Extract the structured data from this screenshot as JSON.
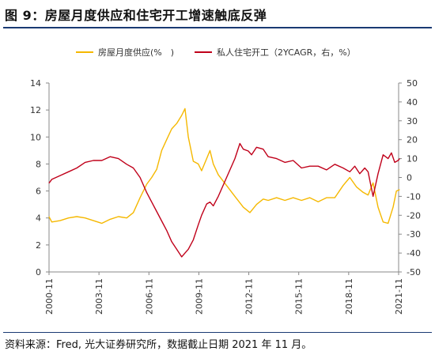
{
  "title": "图 9：房屋月度供应和住宅开工增速触底反弹",
  "source": "资料来源：Fred, 光大证券研究所，数据截止日期 2021 年 11 月。",
  "colors": {
    "supply": "#f5b800",
    "starts": "#c0001a",
    "rule": "#1a3a73",
    "axis": "#888888"
  },
  "chart_data": {
    "type": "line",
    "x_start": "2000-11",
    "x_end": "2021-11",
    "x_tick_labels": [
      "2000-11",
      "2003-11",
      "2006-11",
      "2009-11",
      "2012-11",
      "2015-11",
      "2018-11",
      "2021-11"
    ],
    "left_axis": {
      "ylim": [
        0,
        14
      ],
      "ticks": [
        "0",
        "2",
        "4",
        "6",
        "8",
        "10",
        "12",
        "14"
      ]
    },
    "right_axis": {
      "ylim": [
        -50,
        50
      ],
      "ticks": [
        "-50",
        "-40",
        "-30",
        "-20",
        "-10",
        "0",
        "10",
        "20",
        "30",
        "40",
        "50"
      ]
    },
    "legend_position": "top",
    "series": [
      {
        "name": "房屋月度供应(%　)",
        "axis": "left",
        "points": [
          [
            2000.83,
            4.1
          ],
          [
            2001.0,
            3.7
          ],
          [
            2001.5,
            3.8
          ],
          [
            2002.0,
            4.0
          ],
          [
            2002.5,
            4.1
          ],
          [
            2003.0,
            4.0
          ],
          [
            2003.5,
            3.8
          ],
          [
            2004.0,
            3.6
          ],
          [
            2004.5,
            3.9
          ],
          [
            2005.0,
            4.1
          ],
          [
            2005.5,
            4.0
          ],
          [
            2005.9,
            4.4
          ],
          [
            2006.3,
            5.5
          ],
          [
            2006.7,
            6.5
          ],
          [
            2007.0,
            7.0
          ],
          [
            2007.3,
            7.6
          ],
          [
            2007.6,
            9.0
          ],
          [
            2007.9,
            9.8
          ],
          [
            2008.2,
            10.6
          ],
          [
            2008.5,
            11.0
          ],
          [
            2008.8,
            11.6
          ],
          [
            2009.0,
            12.1
          ],
          [
            2009.2,
            10.0
          ],
          [
            2009.5,
            8.2
          ],
          [
            2009.8,
            8.0
          ],
          [
            2010.0,
            7.5
          ],
          [
            2010.3,
            8.4
          ],
          [
            2010.5,
            9.0
          ],
          [
            2010.7,
            8.0
          ],
          [
            2011.0,
            7.2
          ],
          [
            2011.5,
            6.4
          ],
          [
            2012.0,
            5.6
          ],
          [
            2012.5,
            4.8
          ],
          [
            2012.9,
            4.4
          ],
          [
            2013.3,
            5.0
          ],
          [
            2013.7,
            5.4
          ],
          [
            2014.0,
            5.3
          ],
          [
            2014.5,
            5.5
          ],
          [
            2015.0,
            5.3
          ],
          [
            2015.5,
            5.5
          ],
          [
            2016.0,
            5.3
          ],
          [
            2016.5,
            5.5
          ],
          [
            2017.0,
            5.2
          ],
          [
            2017.5,
            5.5
          ],
          [
            2018.0,
            5.5
          ],
          [
            2018.5,
            6.4
          ],
          [
            2018.9,
            7.0
          ],
          [
            2019.3,
            6.3
          ],
          [
            2019.7,
            5.9
          ],
          [
            2020.0,
            5.7
          ],
          [
            2020.3,
            6.6
          ],
          [
            2020.6,
            4.8
          ],
          [
            2020.9,
            3.7
          ],
          [
            2021.2,
            3.6
          ],
          [
            2021.5,
            4.8
          ],
          [
            2021.7,
            6.0
          ],
          [
            2021.9,
            6.1
          ]
        ]
      },
      {
        "name": "私人住宅开工（2YCAGR，右，%）",
        "axis": "right",
        "points": [
          [
            2000.83,
            -3
          ],
          [
            2001.0,
            -1
          ],
          [
            2001.5,
            1
          ],
          [
            2002.0,
            3
          ],
          [
            2002.5,
            5
          ],
          [
            2003.0,
            8
          ],
          [
            2003.5,
            9
          ],
          [
            2004.0,
            9
          ],
          [
            2004.5,
            11
          ],
          [
            2005.0,
            10
          ],
          [
            2005.5,
            7
          ],
          [
            2005.9,
            5
          ],
          [
            2006.3,
            0
          ],
          [
            2006.7,
            -8
          ],
          [
            2007.0,
            -13
          ],
          [
            2007.3,
            -18
          ],
          [
            2007.6,
            -23
          ],
          [
            2007.9,
            -28
          ],
          [
            2008.2,
            -34
          ],
          [
            2008.5,
            -38
          ],
          [
            2008.8,
            -42
          ],
          [
            2009.0,
            -40
          ],
          [
            2009.2,
            -38
          ],
          [
            2009.5,
            -33
          ],
          [
            2009.8,
            -25
          ],
          [
            2010.0,
            -20
          ],
          [
            2010.3,
            -14
          ],
          [
            2010.5,
            -13
          ],
          [
            2010.7,
            -15
          ],
          [
            2011.0,
            -10
          ],
          [
            2011.5,
            0
          ],
          [
            2012.0,
            10
          ],
          [
            2012.3,
            18
          ],
          [
            2012.5,
            15
          ],
          [
            2012.8,
            14
          ],
          [
            2013.0,
            12
          ],
          [
            2013.3,
            16
          ],
          [
            2013.7,
            15
          ],
          [
            2014.0,
            11
          ],
          [
            2014.5,
            10
          ],
          [
            2015.0,
            8
          ],
          [
            2015.5,
            9
          ],
          [
            2016.0,
            5
          ],
          [
            2016.5,
            6
          ],
          [
            2017.0,
            6
          ],
          [
            2017.5,
            4
          ],
          [
            2018.0,
            7
          ],
          [
            2018.5,
            5
          ],
          [
            2018.9,
            3
          ],
          [
            2019.2,
            6
          ],
          [
            2019.5,
            2
          ],
          [
            2019.8,
            5
          ],
          [
            2020.0,
            3
          ],
          [
            2020.3,
            -10
          ],
          [
            2020.6,
            2
          ],
          [
            2020.9,
            12
          ],
          [
            2021.2,
            10
          ],
          [
            2021.4,
            13
          ],
          [
            2021.6,
            8
          ],
          [
            2021.8,
            9
          ],
          [
            2021.9,
            10
          ]
        ]
      }
    ]
  }
}
